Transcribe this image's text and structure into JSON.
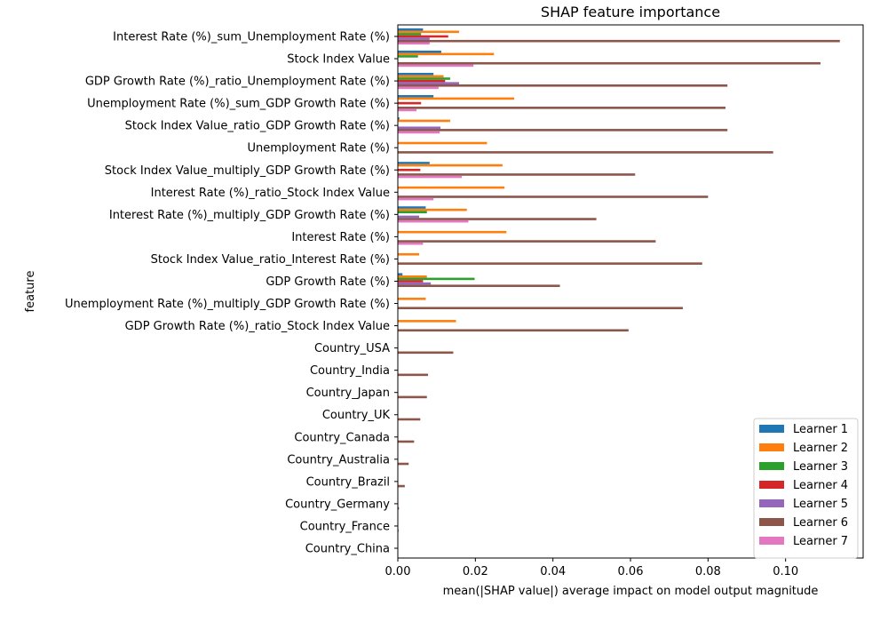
{
  "chart_data": {
    "type": "bar",
    "orientation": "horizontal",
    "title": "SHAP feature importance",
    "xlabel": "mean(|SHAP value|) average impact on model output magnitude",
    "ylabel": "feature",
    "xlim": [
      0,
      0.12
    ],
    "xticks": [
      "0.00",
      "0.02",
      "0.04",
      "0.06",
      "0.08",
      "0.10"
    ],
    "grid": false,
    "legend_position": "bottom-right",
    "categories": [
      "Interest Rate (%)_sum_Unemployment Rate (%)",
      "Stock Index Value",
      "GDP Growth Rate (%)_ratio_Unemployment Rate (%)",
      "Unemployment Rate (%)_sum_GDP Growth Rate (%)",
      "Stock Index Value_ratio_GDP Growth Rate (%)",
      "Unemployment Rate (%)",
      "Stock Index Value_multiply_GDP Growth Rate (%)",
      "Interest Rate (%)_ratio_Stock Index Value",
      "Interest Rate (%)_multiply_GDP Growth Rate (%)",
      "Interest Rate (%)",
      "Stock Index Value_ratio_Interest Rate (%)",
      "GDP Growth Rate (%)",
      "Unemployment Rate (%)_multiply_GDP Growth Rate (%)",
      "GDP Growth Rate (%)_ratio_Stock Index Value",
      "Country_USA",
      "Country_India",
      "Country_Japan",
      "Country_UK",
      "Country_Canada",
      "Country_Australia",
      "Country_Brazil",
      "Country_Germany",
      "Country_France",
      "Country_China"
    ],
    "series": [
      {
        "name": "Learner 1",
        "color": "#1f77b4",
        "values": [
          0.0065,
          0.0112,
          0.0092,
          0.0092,
          0.0004,
          0.0,
          0.0082,
          0.0,
          0.0072,
          0.0,
          0.0,
          0.0012,
          0.0,
          0.0,
          0.0,
          0.0,
          0.0,
          0.0,
          0.0,
          0.0,
          0.0,
          0.0,
          0.0,
          0.0
        ]
      },
      {
        "name": "Learner 2",
        "color": "#ff7f0e",
        "values": [
          0.0158,
          0.0248,
          0.0118,
          0.03,
          0.0135,
          0.023,
          0.027,
          0.0275,
          0.0178,
          0.028,
          0.0055,
          0.0075,
          0.0072,
          0.015,
          0.0,
          0.0,
          0.0,
          0.0,
          0.0,
          0.0,
          0.0,
          0.0,
          0.0,
          0.0
        ]
      },
      {
        "name": "Learner 3",
        "color": "#2ca02c",
        "values": [
          0.006,
          0.0052,
          0.0135,
          0.0,
          0.0,
          0.0,
          0.0,
          0.0,
          0.0075,
          0.0,
          0.0,
          0.0198,
          0.0,
          0.0,
          0.0,
          0.0,
          0.0,
          0.0,
          0.0,
          0.0,
          0.0,
          0.0,
          0.0,
          0.0
        ]
      },
      {
        "name": "Learner 4",
        "color": "#d62728",
        "values": [
          0.013,
          0.0,
          0.0122,
          0.006,
          0.0,
          0.0,
          0.0058,
          0.0,
          0.0,
          0.0,
          0.0,
          0.0065,
          0.0,
          0.0,
          0.0,
          0.0,
          0.0,
          0.0,
          0.0,
          0.0,
          0.0,
          0.0,
          0.0,
          0.0
        ]
      },
      {
        "name": "Learner 5",
        "color": "#9467bd",
        "values": [
          0.0082,
          0.0,
          0.0158,
          0.0,
          0.011,
          0.0,
          0.0,
          0.0,
          0.0055,
          0.0,
          0.0,
          0.0085,
          0.0,
          0.0,
          0.0,
          0.0,
          0.0,
          0.0,
          0.0,
          0.0,
          0.0,
          0.0,
          0.0,
          0.0
        ]
      },
      {
        "name": "Learner 6",
        "color": "#8c564b",
        "values": [
          0.114,
          0.109,
          0.085,
          0.0845,
          0.085,
          0.0968,
          0.0612,
          0.08,
          0.0512,
          0.0665,
          0.0785,
          0.0418,
          0.0735,
          0.0595,
          0.0143,
          0.0078,
          0.0075,
          0.0058,
          0.0042,
          0.0028,
          0.0018,
          0.0003,
          0.0002,
          0.0001
        ]
      },
      {
        "name": "Learner 7",
        "color": "#e377c2",
        "values": [
          0.0082,
          0.0195,
          0.0105,
          0.0048,
          0.0108,
          0.0,
          0.0165,
          0.0092,
          0.0182,
          0.0065,
          0.0,
          0.0,
          0.0,
          0.0,
          0.0,
          0.0,
          0.0,
          0.0,
          0.0,
          0.0,
          0.0,
          0.0,
          0.0,
          0.0
        ]
      }
    ]
  }
}
